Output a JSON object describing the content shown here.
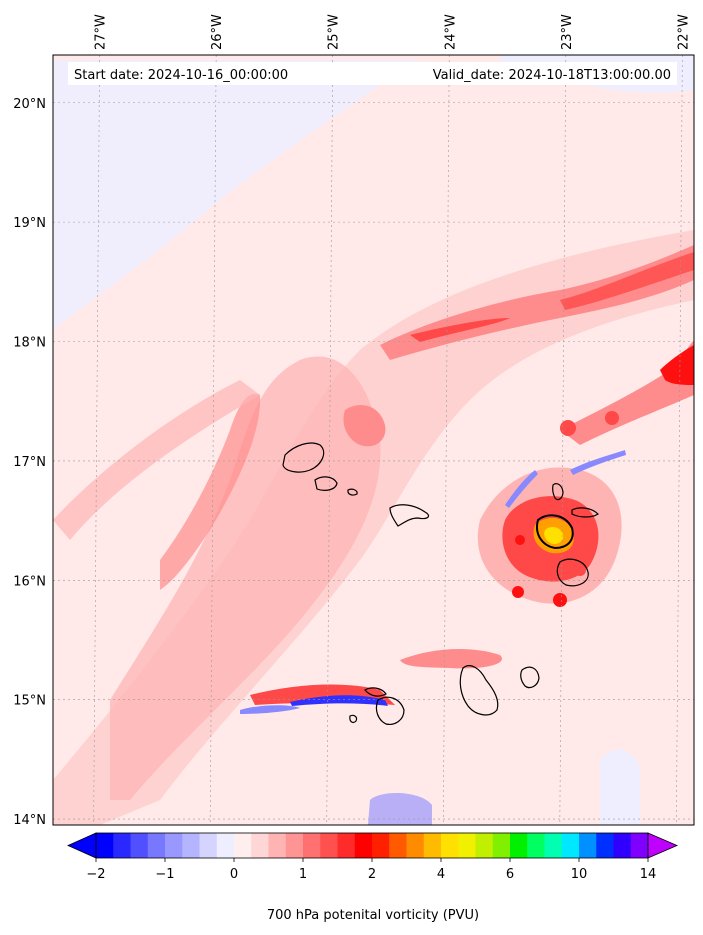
{
  "map": {
    "start_date": "Start date: 2024-10-16_00:00:00",
    "valid_date": "Valid_date: 2024-10-18T13:00:00.00",
    "lon_range": [
      -27.4,
      -21.9
    ],
    "lat_range": [
      13.95,
      20.4
    ],
    "lon_ticks": [
      {
        "value": -27,
        "label": "27°W"
      },
      {
        "value": -26,
        "label": "26°W"
      },
      {
        "value": -25,
        "label": "25°W"
      },
      {
        "value": -24,
        "label": "24°W"
      },
      {
        "value": -23,
        "label": "23°W"
      },
      {
        "value": -22,
        "label": "22°W"
      }
    ],
    "lat_ticks": [
      {
        "value": 20,
        "label": "20°N"
      },
      {
        "value": 19,
        "label": "19°N"
      },
      {
        "value": 18,
        "label": "18°N"
      },
      {
        "value": 17,
        "label": "17°N"
      },
      {
        "value": 16,
        "label": "16°N"
      },
      {
        "value": 15,
        "label": "15°N"
      },
      {
        "value": 14,
        "label": "14°N"
      }
    ],
    "grid": true,
    "field_colors": {
      "background": "#ffe9e9",
      "light_blue": "#eeeeff",
      "pink1": "#ffd2d2",
      "pink2": "#ffb4b4",
      "red1": "#ff8c8c",
      "red2": "#ff4848",
      "red3": "#ff1010",
      "orange": "#ffa000",
      "yellow": "#ffe000",
      "blue_strong": "#3030ff",
      "blue_mid": "#8888ff"
    }
  },
  "colorbar": {
    "label": "700 hPa potenital vorticity (PVU)",
    "ticks": [
      {
        "value": -2,
        "label": "−2"
      },
      {
        "value": -1,
        "label": "−1"
      },
      {
        "value": 0,
        "label": "0"
      },
      {
        "value": 1,
        "label": "1"
      },
      {
        "value": 2,
        "label": "2"
      },
      {
        "value": 4,
        "label": "4"
      },
      {
        "value": 6,
        "label": "6"
      },
      {
        "value": 10,
        "label": "10"
      },
      {
        "value": 14,
        "label": "14"
      }
    ],
    "levels": [
      -2,
      -1.75,
      -1.5,
      -1.25,
      -1,
      -0.75,
      -0.5,
      -0.25,
      0,
      0.25,
      0.5,
      0.75,
      1,
      1.25,
      1.5,
      1.75,
      2,
      2.5,
      3,
      3.5,
      4,
      4.5,
      5,
      5.5,
      6,
      7,
      8,
      9,
      10,
      11,
      12,
      13,
      14
    ],
    "colors": [
      "#0000ff",
      "#2828ff",
      "#5050ff",
      "#7878ff",
      "#9898ff",
      "#b4b4ff",
      "#d4d4ff",
      "#eeeeff",
      "#ffeeee",
      "#ffd6d6",
      "#ffb4b4",
      "#ff9494",
      "#ff7070",
      "#ff5050",
      "#ff2a2a",
      "#ff0000",
      "#ff2000",
      "#ff5a00",
      "#ff8c00",
      "#ffbb00",
      "#ffe000",
      "#f0f000",
      "#c0f000",
      "#80f000",
      "#00f000",
      "#00ff60",
      "#00ffb0",
      "#00e8ff",
      "#0090ff",
      "#0030ff",
      "#3000ff",
      "#8000ff"
    ],
    "extend_low_color": "#0000ff",
    "extend_high_color": "#c000ff"
  }
}
